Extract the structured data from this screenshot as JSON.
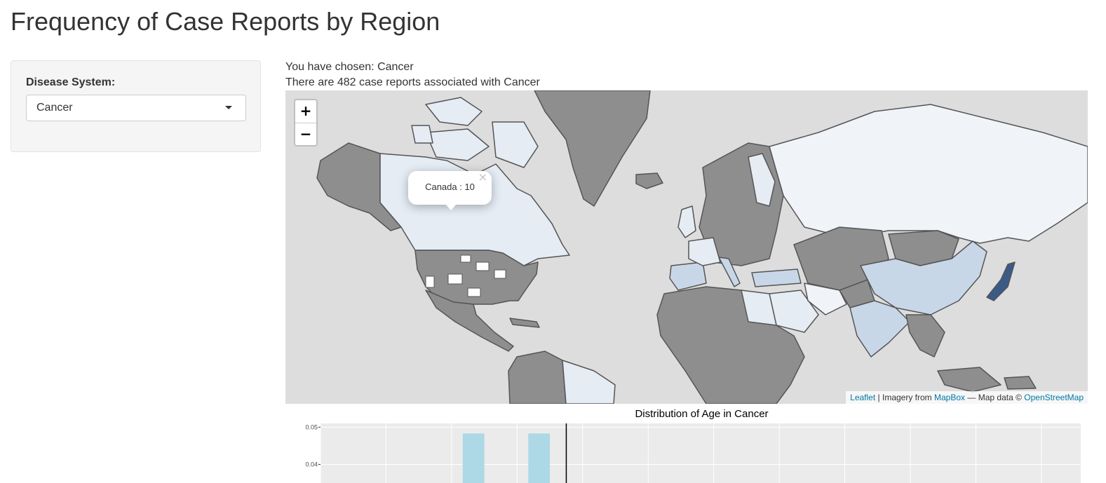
{
  "page": {
    "title": "Frequency of Case Reports by Region"
  },
  "sidebar": {
    "label": "Disease System:",
    "select": {
      "value": "Cancer"
    }
  },
  "main": {
    "chosen_text": "You have chosen: Cancer",
    "count_text": "There are 482 case reports associated with Cancer"
  },
  "map": {
    "zoom_in_label": "+",
    "zoom_out_label": "−",
    "popup": {
      "text": "Canada : 10",
      "close": "×"
    },
    "attribution": {
      "leaflet": "Leaflet",
      "imagery_prefix": "| Imagery from",
      "mapbox": "MapBox",
      "data_prefix": "— Map data ©",
      "osm": "OpenStreetMap"
    },
    "colors": {
      "ocean": "#dddddd",
      "no_data": "#8e8e8e",
      "low": "#e5ecf4",
      "medium": "#c8d7e8",
      "high": "#3b5a86",
      "border": "#555555"
    }
  },
  "histogram": {
    "title": "Distribution of Age in Cancer",
    "colors": {
      "bar": "#add8e6",
      "panel": "#ebebeb",
      "grid": "#ffffff",
      "vline": "#000000"
    },
    "chart_data": {
      "type": "bar",
      "title": "Distribution of Age in Cancer",
      "y_ticks": [
        "0.05",
        "0.04"
      ],
      "ylim": [
        0.035,
        0.051
      ],
      "grid": true,
      "bars": [
        {
          "bin": 2,
          "value": 0.0483
        },
        {
          "bin": 3,
          "value": 0.0483
        }
      ],
      "vline_bin": 3.75,
      "bin_count": 11
    }
  }
}
